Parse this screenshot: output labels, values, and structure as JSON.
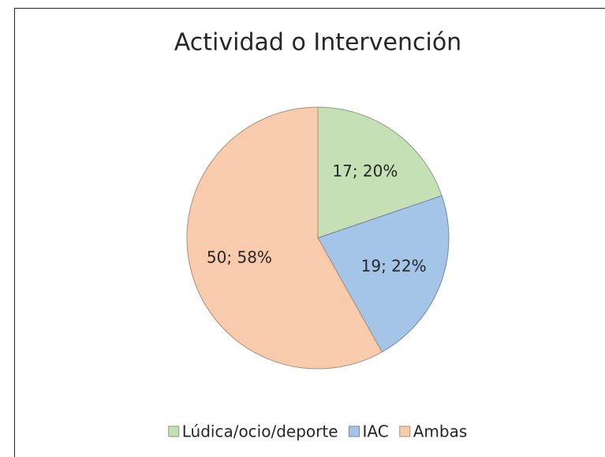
{
  "chart_data": {
    "type": "pie",
    "title": "Actividad o Intervención",
    "categories": [
      "Lúdica/ocio/deporte",
      "IAC",
      "Ambas"
    ],
    "values": [
      17,
      19,
      50
    ],
    "value_labels": [
      "17; 20%",
      "19; 22%",
      "50; 58%"
    ],
    "colors": [
      "#c5e0b4",
      "#a4c4e8",
      "#f8cbad"
    ],
    "legend": "bottom"
  }
}
